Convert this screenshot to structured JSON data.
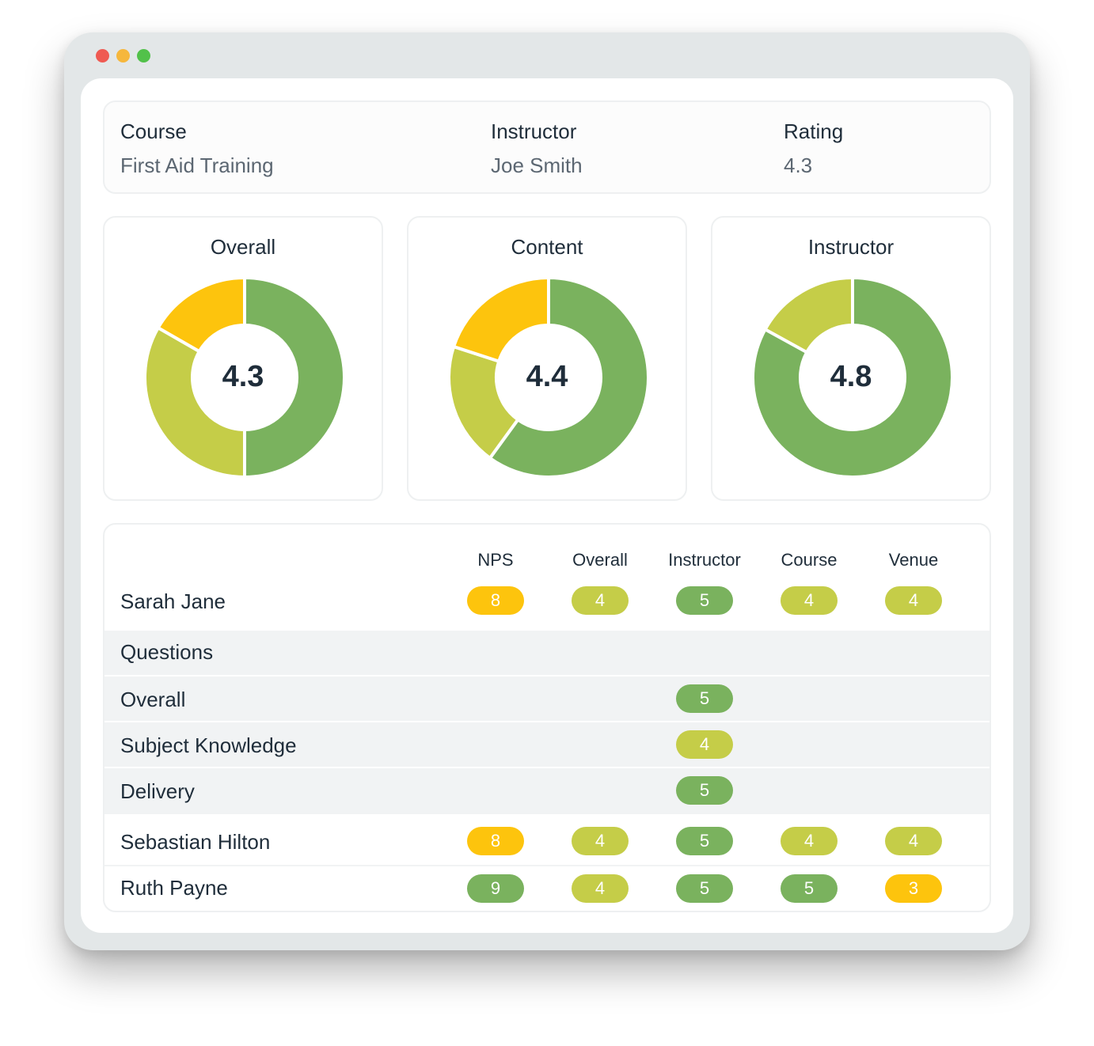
{
  "window": {
    "controls": [
      "close",
      "minimize",
      "maximize"
    ]
  },
  "info": {
    "course_label": "Course",
    "course_value": "First Aid Training",
    "instructor_label": "Instructor",
    "instructor_value": "Joe Smith",
    "rating_label": "Rating",
    "rating_value": "4.3"
  },
  "colors": {
    "green": "#7ab25e",
    "lime": "#c5cd48",
    "amber": "#fdc40d"
  },
  "chart_data": [
    {
      "type": "pie",
      "title": "Overall",
      "center_label": "4.3",
      "slices": [
        {
          "color": "green",
          "value": 50
        },
        {
          "color": "lime",
          "value": 33.3
        },
        {
          "color": "amber",
          "value": 16.7
        }
      ]
    },
    {
      "type": "pie",
      "title": "Content",
      "center_label": "4.4",
      "slices": [
        {
          "color": "green",
          "value": 60
        },
        {
          "color": "lime",
          "value": 20
        },
        {
          "color": "amber",
          "value": 20
        }
      ]
    },
    {
      "type": "pie",
      "title": "Instructor",
      "center_label": "4.8",
      "slices": [
        {
          "color": "green",
          "value": 83
        },
        {
          "color": "lime",
          "value": 17
        }
      ]
    }
  ],
  "table": {
    "columns": [
      "NPS",
      "Overall",
      "Instructor",
      "Course",
      "Venue"
    ],
    "rows": [
      {
        "name": "Sarah Jane",
        "cells": [
          {
            "value": "8",
            "color": "amber"
          },
          {
            "value": "4",
            "color": "lime"
          },
          {
            "value": "5",
            "color": "green"
          },
          {
            "value": "4",
            "color": "lime"
          },
          {
            "value": "4",
            "color": "lime"
          }
        ]
      },
      {
        "name": "Sebastian Hilton",
        "cells": [
          {
            "value": "8",
            "color": "amber"
          },
          {
            "value": "4",
            "color": "lime"
          },
          {
            "value": "5",
            "color": "green"
          },
          {
            "value": "4",
            "color": "lime"
          },
          {
            "value": "4",
            "color": "lime"
          }
        ]
      },
      {
        "name": "Ruth Payne",
        "cells": [
          {
            "value": "9",
            "color": "green"
          },
          {
            "value": "4",
            "color": "lime"
          },
          {
            "value": "5",
            "color": "green"
          },
          {
            "value": "5",
            "color": "green"
          },
          {
            "value": "3",
            "color": "amber"
          }
        ]
      }
    ],
    "questions": {
      "heading": "Questions",
      "items": [
        {
          "label": "Overall",
          "value": "5",
          "color": "green"
        },
        {
          "label": "Subject Knowledge",
          "value": "4",
          "color": "lime"
        },
        {
          "label": "Delivery",
          "value": "5",
          "color": "green"
        }
      ]
    }
  }
}
